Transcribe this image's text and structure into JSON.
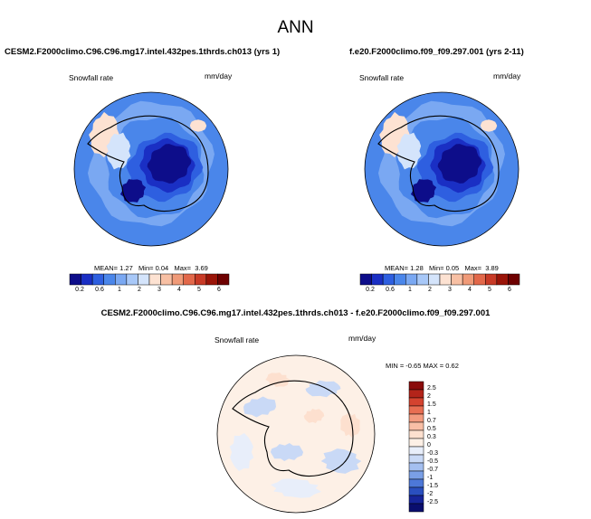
{
  "figure": {
    "title": "ANN"
  },
  "panels": [
    {
      "title": "CESM2.F2000climo.C96.C96.mg17.intel.432pes.1thrds.ch013 (yrs 1)",
      "variable": "Snowfall rate",
      "units": "mm/day",
      "mean_label": "MEAN=",
      "mean_value": "1.27",
      "min_label": "Min=",
      "min_value": "0.04",
      "max_label": "Max=",
      "max_value": "3.69",
      "colorbar_ticks": [
        "0.2",
        "0.6",
        "1",
        "2",
        "3",
        "4",
        "5",
        "6"
      ]
    },
    {
      "title": "f.e20.F2000climo.f09_f09.297.001 (yrs 2-11)",
      "variable": "Snowfall rate",
      "units": "mm/day",
      "mean_label": "MEAN=",
      "mean_value": "1.28",
      "min_label": "Min=",
      "min_value": "0.05",
      "max_label": "Max=",
      "max_value": "3.89",
      "colorbar_ticks": [
        "0.2",
        "0.6",
        "1",
        "2",
        "3",
        "4",
        "5",
        "6"
      ]
    },
    {
      "title": "CESM2.F2000climo.C96.C96.mg17.intel.432pes.1thrds.ch013 - f.e20.F2000climo.f09_f09.297.001",
      "variable": "Snowfall rate",
      "units": "mm/day",
      "minmax_text": "MIN = -0.65 MAX = 0.62",
      "colorbar_ticks": [
        "2.5",
        "2",
        "1.5",
        "1",
        "0.7",
        "0.5",
        "0.3",
        "0",
        "-0.3",
        "-0.5",
        "-0.7",
        "-1",
        "-1.5",
        "-2",
        "-2.5"
      ]
    }
  ],
  "colors": {
    "seq_colorbar": [
      "#0d0d8a",
      "#1a2fc4",
      "#2e5fe0",
      "#4a86ea",
      "#7aa8f2",
      "#a8c8f8",
      "#d4e4fb",
      "#fde2d2",
      "#f8c0a4",
      "#f09a78",
      "#e2684a",
      "#c83a26",
      "#9a1408",
      "#6e0000"
    ],
    "div_colorbar": [
      "#8a0b0b",
      "#b3241a",
      "#d4432f",
      "#e86e52",
      "#f39b7f",
      "#f9bfa6",
      "#fde0cf",
      "#fdf0e6",
      "#e8eefa",
      "#c9d9f6",
      "#a4bff0",
      "#7a9fe6",
      "#4d78d8",
      "#2a4fbf",
      "#17259a",
      "#0a0e6e"
    ]
  }
}
